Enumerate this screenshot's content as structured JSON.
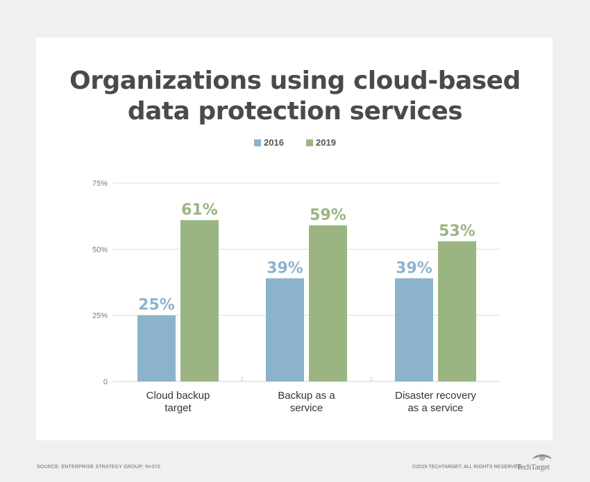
{
  "title_lines": [
    "Organizations using cloud-based",
    "data protection services"
  ],
  "legend": [
    {
      "label": "2016",
      "color": "#8bb4cc"
    },
    {
      "label": "2019",
      "color": "#9ab582"
    }
  ],
  "chart_data": {
    "type": "bar",
    "title": "Organizations using cloud-based data protection services",
    "categories": [
      "Cloud backup target",
      "Backup as a service",
      "Disaster recovery as a service"
    ],
    "category_lines": [
      [
        "Cloud backup",
        "target"
      ],
      [
        "Backup as a",
        "service"
      ],
      [
        "Disaster recovery",
        "as a service"
      ]
    ],
    "series": [
      {
        "name": "2016",
        "values": [
          25,
          39,
          39
        ],
        "labels": [
          "25%",
          "39%",
          "39%"
        ],
        "color": "#8bb4cc"
      },
      {
        "name": "2019",
        "values": [
          61,
          59,
          53
        ],
        "labels": [
          "61%",
          "59%",
          "53%"
        ],
        "color": "#9ab582"
      }
    ],
    "ylim": [
      0,
      75
    ],
    "yticks": [
      0,
      25,
      50,
      75
    ],
    "ytick_labels": [
      "0",
      "25%",
      "50%",
      "75%"
    ],
    "grid": true,
    "legend_position": "top-center",
    "xlabel": "",
    "ylabel": ""
  },
  "footer": {
    "source": "SOURCE: ENTERPRISE STRATEGY GROUP; N=370",
    "copyright": "©2019 TECHTARGET. ALL RIGHTS RESERVED",
    "logo_text": "TechTarget"
  }
}
